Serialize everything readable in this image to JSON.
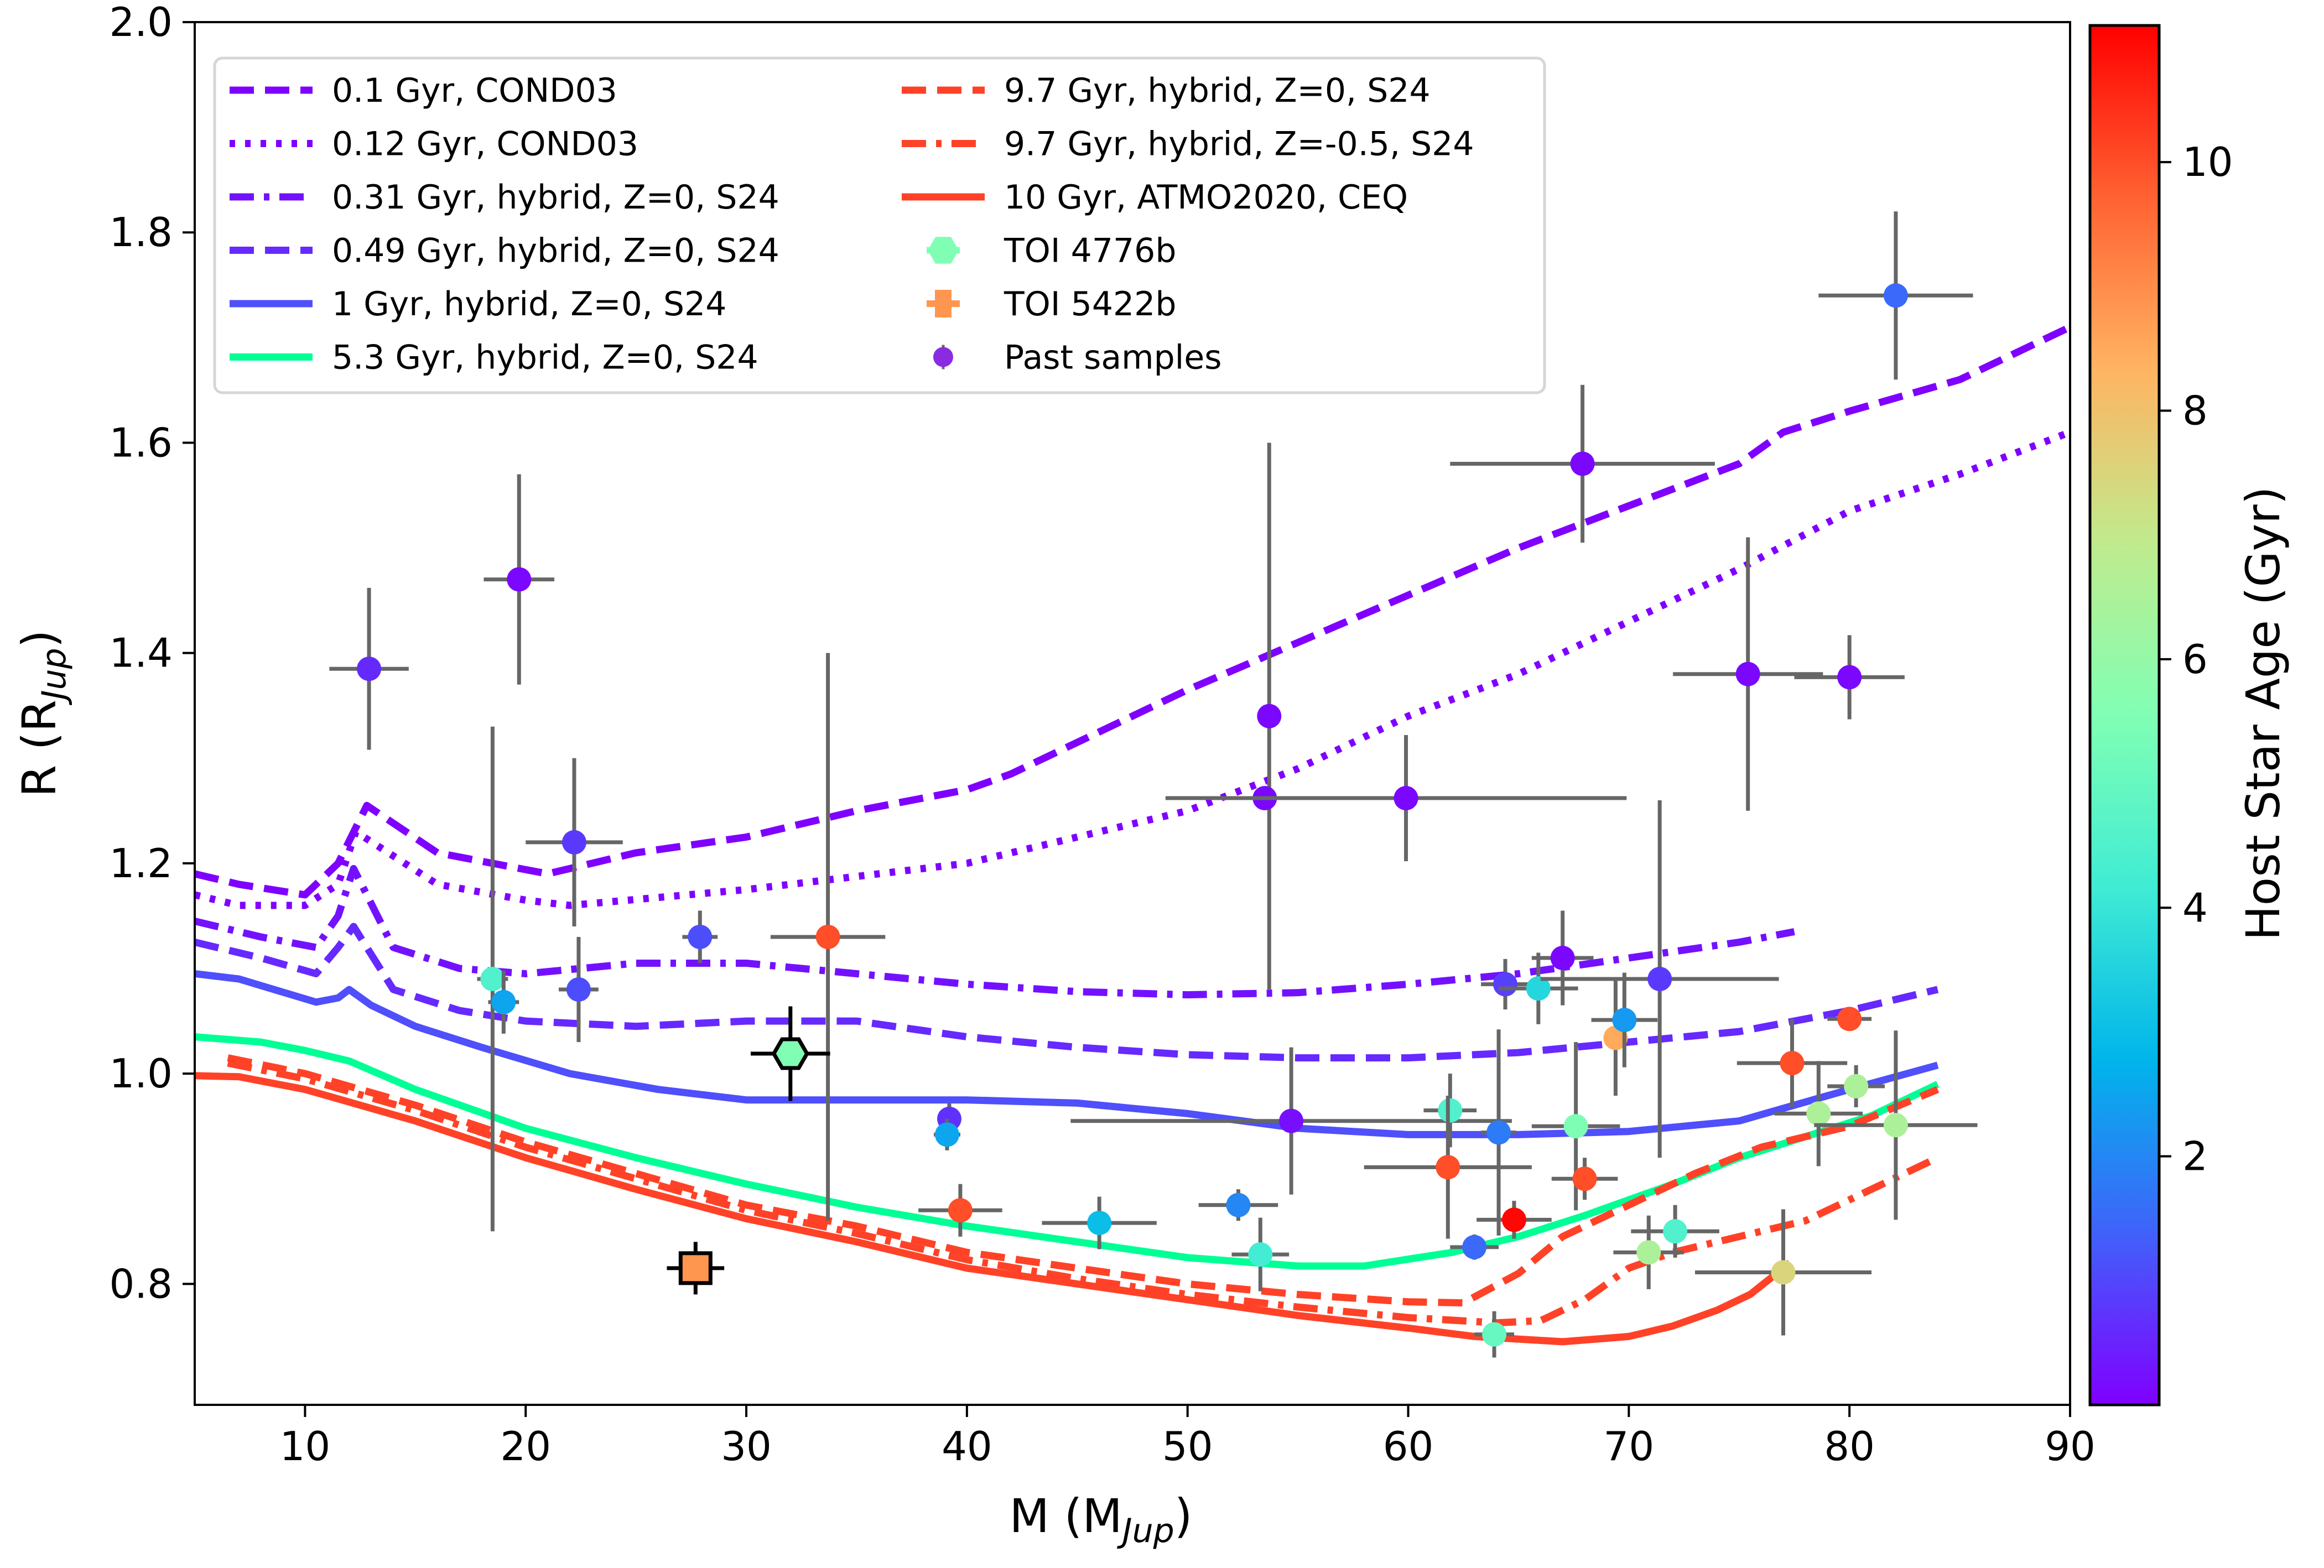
{
  "chart_data": {
    "type": "scatter",
    "xlabel": "M (M_Jup)",
    "xlabel_main": "M (M",
    "xlabel_sub": "Jup",
    "xlabel_close": ")",
    "ylabel_main": "R (R",
    "ylabel_sub": "Jup",
    "ylabel_close": ")",
    "xlim": [
      5,
      90
    ],
    "ylim": [
      0.685,
      2.0
    ],
    "xticks": [
      10,
      20,
      30,
      40,
      50,
      60,
      70,
      80,
      90
    ],
    "yticks": [
      0.8,
      1.0,
      1.2,
      1.4,
      1.6,
      1.8,
      2.0
    ],
    "ytick_labels": [
      "0.8",
      "1.0",
      "1.2",
      "1.4",
      "1.6",
      "1.8",
      "2.0"
    ],
    "grid": false,
    "legend_placement": "top-left",
    "colorbar": {
      "label": "Host Star Age (Gyr)",
      "range": [
        0,
        11.1
      ],
      "ticks": [
        2,
        4,
        6,
        8,
        10
      ],
      "colormap": "rainbow"
    },
    "models": [
      {
        "name": "0.1 Gyr, COND03",
        "color": "#7f00ff",
        "style": "dashed",
        "x": [
          5,
          7,
          10,
          11.5,
          12.8,
          16,
          21,
          25,
          30,
          35,
          40,
          42,
          50,
          55,
          60,
          65,
          70,
          75,
          77,
          80,
          85,
          90
        ],
        "y": [
          1.19,
          1.18,
          1.17,
          1.2,
          1.255,
          1.21,
          1.19,
          1.21,
          1.225,
          1.25,
          1.27,
          1.285,
          1.365,
          1.41,
          1.455,
          1.5,
          1.54,
          1.58,
          1.61,
          1.63,
          1.66,
          1.71
        ]
      },
      {
        "name": "0.12 Gyr, COND03",
        "color": "#7f00ff",
        "style": "dotted",
        "x": [
          5,
          7,
          10,
          11.5,
          12.3,
          16,
          20,
          22,
          30,
          40,
          50,
          55,
          60,
          65,
          70,
          75,
          80,
          85,
          90
        ],
        "y": [
          1.17,
          1.16,
          1.16,
          1.18,
          1.23,
          1.18,
          1.165,
          1.16,
          1.175,
          1.2,
          1.25,
          1.29,
          1.34,
          1.38,
          1.43,
          1.48,
          1.535,
          1.57,
          1.61
        ]
      },
      {
        "name": "0.31 Gyr, hybrid, Z=0, S24",
        "color": "#7311ff",
        "style": "dashdot",
        "x": [
          5,
          8,
          10.5,
          11.5,
          12.2,
          14,
          17,
          20,
          25,
          30,
          35,
          40,
          45,
          50,
          55,
          60,
          65,
          70,
          75,
          77.5
        ],
        "y": [
          1.145,
          1.13,
          1.12,
          1.15,
          1.195,
          1.12,
          1.1,
          1.095,
          1.105,
          1.105,
          1.095,
          1.085,
          1.078,
          1.075,
          1.077,
          1.085,
          1.095,
          1.11,
          1.125,
          1.135
        ]
      },
      {
        "name": "0.49 Gyr, hybrid, Z=0, S24",
        "color": "#6629ff",
        "style": "dashed",
        "x": [
          5,
          8,
          10.5,
          11.5,
          12.2,
          14,
          17,
          20,
          25,
          30,
          35,
          40,
          45,
          50,
          55,
          60,
          65,
          70,
          75,
          80,
          84
        ],
        "y": [
          1.125,
          1.11,
          1.095,
          1.12,
          1.14,
          1.08,
          1.06,
          1.05,
          1.045,
          1.05,
          1.05,
          1.035,
          1.025,
          1.018,
          1.015,
          1.015,
          1.02,
          1.03,
          1.04,
          1.06,
          1.08
        ]
      },
      {
        "name": "1 Gyr, hybrid, Z=0, S24",
        "color": "#4f4ffb",
        "style": "solid",
        "x": [
          5,
          7,
          10.5,
          11.5,
          12,
          13,
          15,
          18,
          22,
          26,
          30,
          35,
          40,
          45,
          50,
          55,
          60,
          65,
          70,
          75,
          80,
          84
        ],
        "y": [
          1.095,
          1.09,
          1.068,
          1.072,
          1.08,
          1.065,
          1.045,
          1.025,
          1.0,
          0.985,
          0.975,
          0.975,
          0.975,
          0.972,
          0.962,
          0.948,
          0.942,
          0.942,
          0.945,
          0.955,
          0.985,
          1.008
        ]
      },
      {
        "name": "5.3 Gyr, hybrid, Z=0, S24",
        "color": "#00ff95",
        "style": "solid",
        "x": [
          5,
          8,
          10,
          12,
          15,
          20,
          25,
          30,
          35,
          40,
          45,
          50,
          55,
          58,
          62,
          65,
          68,
          72,
          75,
          78,
          81,
          84
        ],
        "y": [
          1.035,
          1.03,
          1.022,
          1.012,
          0.985,
          0.948,
          0.92,
          0.895,
          0.873,
          0.855,
          0.84,
          0.825,
          0.817,
          0.817,
          0.83,
          0.845,
          0.865,
          0.895,
          0.92,
          0.94,
          0.96,
          0.99
        ]
      },
      {
        "name": "9.7 Gyr, hybrid, Z=0, S24",
        "color": "#ff4227",
        "style": "dashed",
        "x": [
          6.5,
          10,
          15,
          20,
          25,
          30,
          35,
          40,
          45,
          50,
          55,
          60,
          62.5,
          65,
          67,
          70,
          73,
          76,
          80,
          84
        ],
        "y": [
          1.015,
          1.0,
          0.97,
          0.935,
          0.905,
          0.875,
          0.855,
          0.83,
          0.815,
          0.8,
          0.79,
          0.783,
          0.782,
          0.81,
          0.845,
          0.875,
          0.905,
          0.93,
          0.95,
          0.985
        ]
      },
      {
        "name": "9.7 Gyr, hybrid, Z=-0.5, S24",
        "color": "#ff4227",
        "style": "dashdot",
        "x": [
          6.5,
          10,
          15,
          20,
          25,
          30,
          35,
          40,
          45,
          50,
          55,
          60,
          64,
          66,
          68,
          70,
          72,
          75,
          78,
          84
        ],
        "y": [
          1.01,
          0.995,
          0.965,
          0.93,
          0.9,
          0.87,
          0.848,
          0.823,
          0.805,
          0.79,
          0.778,
          0.768,
          0.763,
          0.765,
          0.785,
          0.815,
          0.83,
          0.845,
          0.86,
          0.92
        ]
      },
      {
        "name": "10 Gyr, ATMO2020, CEQ",
        "color": "#ff4227",
        "style": "solid",
        "x": [
          5,
          7,
          10,
          15,
          20,
          25,
          30,
          35,
          40,
          45,
          50,
          55,
          60,
          63,
          67,
          70,
          72,
          74,
          75.5,
          77.3
        ],
        "y": [
          0.998,
          0.997,
          0.985,
          0.955,
          0.92,
          0.89,
          0.862,
          0.84,
          0.815,
          0.8,
          0.785,
          0.77,
          0.758,
          0.75,
          0.745,
          0.75,
          0.76,
          0.775,
          0.79,
          0.82
        ]
      }
    ],
    "toi_points": [
      {
        "name": "TOI 4776b",
        "marker": "hexagon",
        "color": "#80ffb4",
        "x": 32.0,
        "y": 1.019,
        "xerr": 1.8,
        "yerr": 0.045
      },
      {
        "name": "TOI 5422b",
        "marker": "square",
        "color": "#ff9650",
        "x": 27.7,
        "y": 0.815,
        "xerr": 1.3,
        "yerr": 0.025
      }
    ],
    "past_samples_label": "Past samples",
    "past_samples": [
      {
        "x": 12.9,
        "y": 1.385,
        "xerr": 1.8,
        "yerr": 0.077,
        "age": 0.6
      },
      {
        "x": 19.7,
        "y": 1.47,
        "xerr": 1.6,
        "yerr": 0.1,
        "age": 0.1
      },
      {
        "x": 22.2,
        "y": 1.22,
        "xerr": 2.2,
        "yerr": 0.08,
        "age": 0.8
      },
      {
        "x": 22.4,
        "y": 1.08,
        "xerr": 0.9,
        "yerr": 0.05,
        "age": 1.1
      },
      {
        "x": 18.5,
        "y": 1.09,
        "xerr": 0.7,
        "yerr": 0.24,
        "age": 4.5
      },
      {
        "x": 19.0,
        "y": 1.068,
        "xerr": 0.7,
        "yerr": 0.03,
        "age": 2.5
      },
      {
        "x": 27.9,
        "y": 1.13,
        "xerr": 0.8,
        "yerr": 0.025,
        "age": 1.1
      },
      {
        "x": 33.7,
        "y": 1.13,
        "xerr": 2.6,
        "yerr": 0.27,
        "age": 10.0
      },
      {
        "x": 39.2,
        "y": 0.957,
        "xerr": 0.5,
        "yerr": 0.015,
        "age": 0.7
      },
      {
        "x": 39.1,
        "y": 0.942,
        "xerr": 0.6,
        "yerr": 0.015,
        "age": 2.5
      },
      {
        "x": 39.7,
        "y": 0.87,
        "xerr": 1.9,
        "yerr": 0.025,
        "age": 10.0
      },
      {
        "x": 46.0,
        "y": 0.858,
        "xerr": 2.6,
        "yerr": 0.025,
        "age": 3.0
      },
      {
        "x": 52.3,
        "y": 0.875,
        "xerr": 1.8,
        "yerr": 0.015,
        "age": 2.0
      },
      {
        "x": 53.7,
        "y": 1.34,
        "xerr": 0.5,
        "yerr": 0.26,
        "age": 0.1
      },
      {
        "x": 53.5,
        "y": 1.262,
        "xerr": 4.5,
        "yerr": 0.0,
        "age": 0.1
      },
      {
        "x": 53.3,
        "y": 0.828,
        "xerr": 1.3,
        "yerr": 0.035,
        "age": 4.2
      },
      {
        "x": 54.7,
        "y": 0.955,
        "xerr": 10.0,
        "yerr": 0.07,
        "age": 0.2
      },
      {
        "x": 59.9,
        "y": 1.262,
        "xerr": 10.0,
        "yerr": 0.06,
        "age": 0.1
      },
      {
        "x": 61.9,
        "y": 0.965,
        "xerr": 1.2,
        "yerr": 0.035,
        "age": 4.5
      },
      {
        "x": 61.8,
        "y": 0.911,
        "xerr": 3.8,
        "yerr": 0.068,
        "age": 10.0
      },
      {
        "x": 63.0,
        "y": 0.835,
        "xerr": 1.1,
        "yerr": 0.012,
        "age": 1.5
      },
      {
        "x": 64.1,
        "y": 0.944,
        "xerr": 0.8,
        "yerr": 0.098,
        "age": 1.8
      },
      {
        "x": 64.4,
        "y": 1.085,
        "xerr": 1.1,
        "yerr": 0.024,
        "age": 0.9
      },
      {
        "x": 65.9,
        "y": 1.081,
        "xerr": 1.8,
        "yerr": 0.034,
        "age": 3.6
      },
      {
        "x": 64.8,
        "y": 0.861,
        "xerr": 1.7,
        "yerr": 0.018,
        "age": 11.0
      },
      {
        "x": 63.9,
        "y": 0.752,
        "xerr": 0.9,
        "yerr": 0.022,
        "age": 5.0
      },
      {
        "x": 67.0,
        "y": 1.11,
        "xerr": 1.4,
        "yerr": 0.045,
        "age": 0.1
      },
      {
        "x": 67.6,
        "y": 0.95,
        "xerr": 2.0,
        "yerr": 0.08,
        "age": 5.5
      },
      {
        "x": 68.0,
        "y": 0.9,
        "xerr": 1.5,
        "yerr": 0.02,
        "age": 10.0
      },
      {
        "x": 67.9,
        "y": 1.58,
        "xerr": 6.0,
        "yerr": 0.075,
        "age": 0.1
      },
      {
        "x": 69.4,
        "y": 1.034,
        "xerr": 0.3,
        "yerr": 0.055,
        "age": 8.5
      },
      {
        "x": 69.8,
        "y": 1.051,
        "xerr": 1.5,
        "yerr": 0.045,
        "age": 2.3
      },
      {
        "x": 71.4,
        "y": 1.09,
        "xerr": 5.4,
        "yerr": 0.17,
        "age": 0.8
      },
      {
        "x": 70.9,
        "y": 0.83,
        "xerr": 1.6,
        "yerr": 0.035,
        "age": 6.5
      },
      {
        "x": 72.1,
        "y": 0.85,
        "xerr": 2.0,
        "yerr": 0.025,
        "age": 4.5
      },
      {
        "x": 75.4,
        "y": 1.38,
        "xerr": 3.4,
        "yerr": 0.13,
        "age": 0.1
      },
      {
        "x": 77.0,
        "y": 0.811,
        "xerr": 4.0,
        "yerr": 0.06,
        "age": 7.5
      },
      {
        "x": 77.4,
        "y": 1.01,
        "xerr": 2.5,
        "yerr": 0.042,
        "age": 10.0
      },
      {
        "x": 78.6,
        "y": 0.962,
        "xerr": 2.0,
        "yerr": 0.05,
        "age": 6.5
      },
      {
        "x": 80.0,
        "y": 1.377,
        "xerr": 2.5,
        "yerr": 0.04,
        "age": 0.1
      },
      {
        "x": 80.0,
        "y": 1.052,
        "xerr": 1.0,
        "yerr": 0.0,
        "age": 10.0
      },
      {
        "x": 80.3,
        "y": 0.988,
        "xerr": 1.3,
        "yerr": 0.02,
        "age": 6.5
      },
      {
        "x": 82.1,
        "y": 0.951,
        "xerr": 3.7,
        "yerr": 0.09,
        "age": 6.5
      },
      {
        "x": 82.1,
        "y": 1.74,
        "xerr": 3.5,
        "yerr": 0.08,
        "age": 1.5
      }
    ],
    "legend": [
      {
        "label": "0.1 Gyr, COND03",
        "kind": "line",
        "color": "#7f00ff",
        "style": "dashed"
      },
      {
        "label": "0.12 Gyr, COND03",
        "kind": "line",
        "color": "#7f00ff",
        "style": "dotted"
      },
      {
        "label": "0.31 Gyr, hybrid, Z=0, S24",
        "kind": "line",
        "color": "#7311ff",
        "style": "dashdot"
      },
      {
        "label": "0.49 Gyr, hybrid, Z=0, S24",
        "kind": "line",
        "color": "#6629ff",
        "style": "dashed"
      },
      {
        "label": "1 Gyr, hybrid, Z=0, S24",
        "kind": "line",
        "color": "#4f4ffb",
        "style": "solid"
      },
      {
        "label": "5.3 Gyr, hybrid, Z=0, S24",
        "kind": "line",
        "color": "#00ff95",
        "style": "solid"
      },
      {
        "label": "9.7 Gyr, hybrid, Z=0, S24",
        "kind": "line",
        "color": "#ff4227",
        "style": "dashed"
      },
      {
        "label": "9.7 Gyr, hybrid, Z=-0.5, S24",
        "kind": "line",
        "color": "#ff4227",
        "style": "dashdot"
      },
      {
        "label": "10 Gyr, ATMO2020, CEQ",
        "kind": "line",
        "color": "#ff4227",
        "style": "solid"
      },
      {
        "label": "TOI 4776b",
        "kind": "hexagon",
        "color": "#80ffb4"
      },
      {
        "label": "TOI 5422b",
        "kind": "square",
        "color": "#ff9650"
      },
      {
        "label": "Past samples",
        "kind": "point",
        "color": "#8a2be2"
      }
    ]
  }
}
